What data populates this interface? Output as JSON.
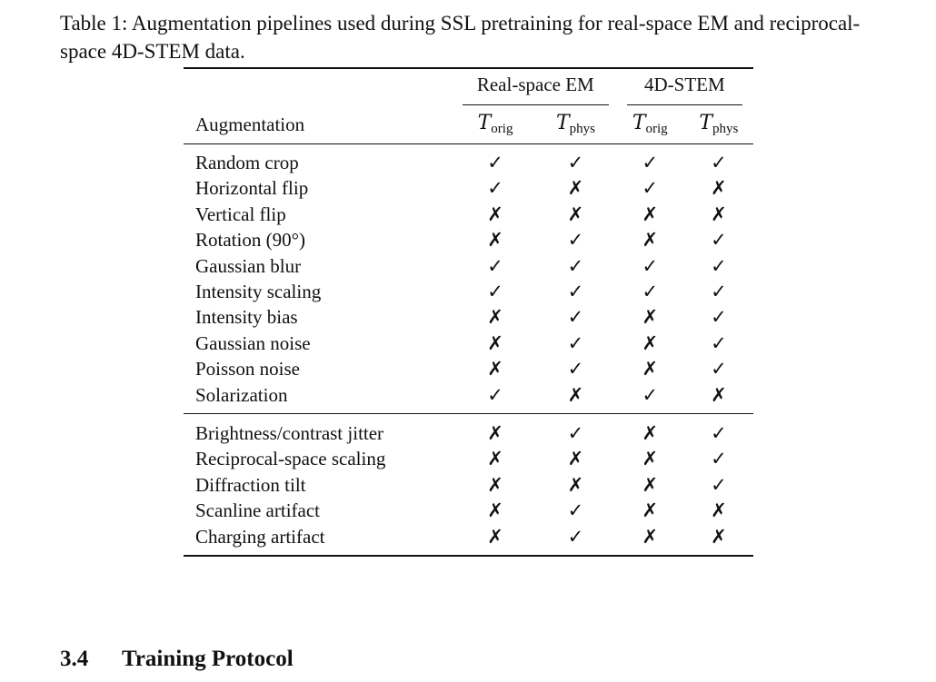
{
  "caption": "Table 1: Augmentation pipelines used during SSL pretraining for real-space EM and reciprocal-space 4D-STEM data.",
  "table": {
    "groups": [
      "Real-space EM",
      "4D-STEM"
    ],
    "row_header": "Augmentation",
    "sub_symbol": "T",
    "subcols": [
      "orig",
      "phys",
      "orig",
      "phys"
    ],
    "group1": [
      {
        "label": "Random crop",
        "marks": [
          "✓",
          "✓",
          "✓",
          "✓"
        ]
      },
      {
        "label": "Horizontal flip",
        "marks": [
          "✓",
          "✗",
          "✓",
          "✗"
        ]
      },
      {
        "label": "Vertical flip",
        "marks": [
          "✗",
          "✗",
          "✗",
          "✗"
        ]
      },
      {
        "label": "Rotation (90°)",
        "marks": [
          "✗",
          "✓",
          "✗",
          "✓"
        ]
      },
      {
        "label": "Gaussian blur",
        "marks": [
          "✓",
          "✓",
          "✓",
          "✓"
        ]
      },
      {
        "label": "Intensity scaling",
        "marks": [
          "✓",
          "✓",
          "✓",
          "✓"
        ]
      },
      {
        "label": "Intensity bias",
        "marks": [
          "✗",
          "✓",
          "✗",
          "✓"
        ]
      },
      {
        "label": "Gaussian noise",
        "marks": [
          "✗",
          "✓",
          "✗",
          "✓"
        ]
      },
      {
        "label": "Poisson noise",
        "marks": [
          "✗",
          "✓",
          "✗",
          "✓"
        ]
      },
      {
        "label": "Solarization",
        "marks": [
          "✓",
          "✗",
          "✓",
          "✗"
        ]
      }
    ],
    "group2": [
      {
        "label": "Brightness/contrast jitter",
        "marks": [
          "✗",
          "✓",
          "✗",
          "✓"
        ]
      },
      {
        "label": "Reciprocal-space scaling",
        "marks": [
          "✗",
          "✗",
          "✗",
          "✓"
        ]
      },
      {
        "label": "Diffraction tilt",
        "marks": [
          "✗",
          "✗",
          "✗",
          "✓"
        ]
      },
      {
        "label": "Scanline artifact",
        "marks": [
          "✗",
          "✓",
          "✗",
          "✗"
        ]
      },
      {
        "label": "Charging artifact",
        "marks": [
          "✗",
          "✓",
          "✗",
          "✗"
        ]
      }
    ]
  },
  "section": {
    "number": "3.4",
    "title": "Training Protocol"
  }
}
